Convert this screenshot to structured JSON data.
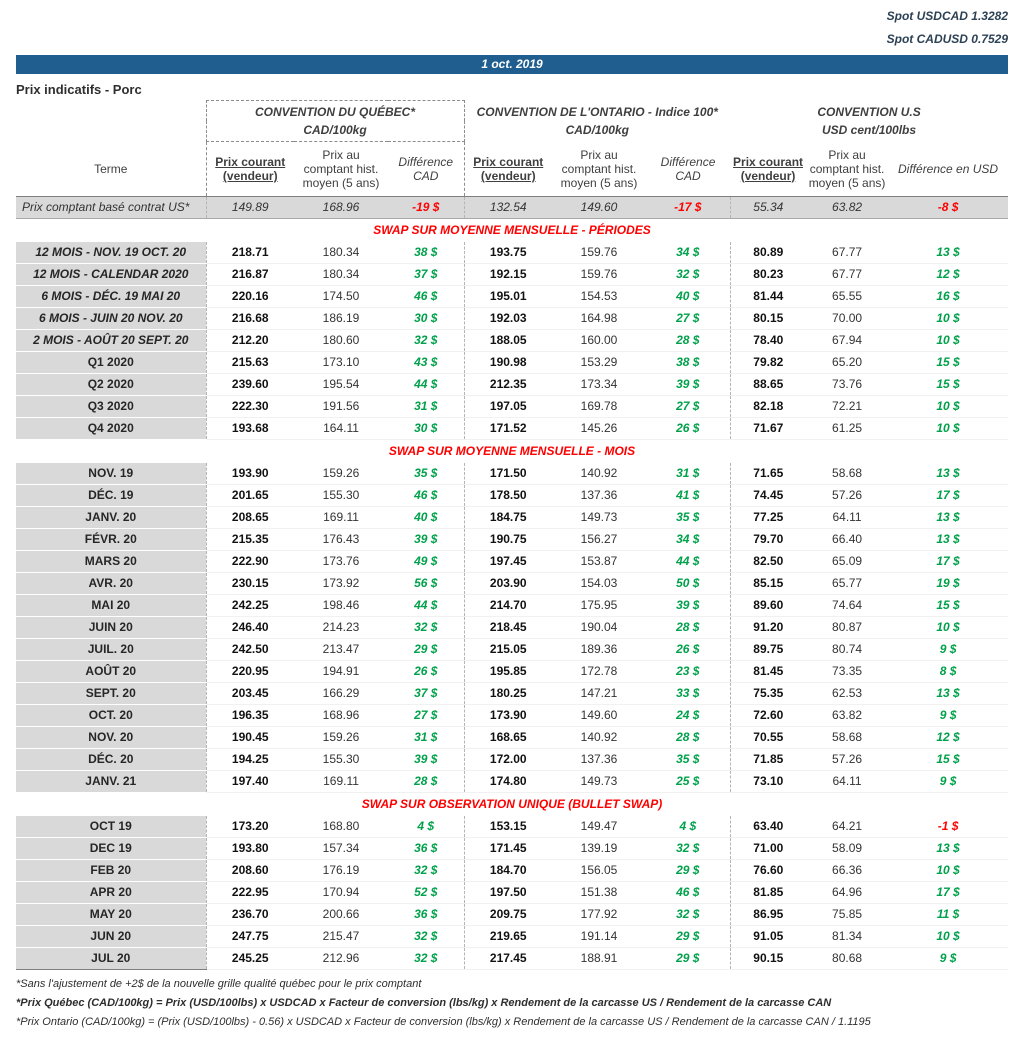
{
  "colors": {
    "banner_blue": "#205E90",
    "positive_green": "#00A14B",
    "negative_red": "#FF0000",
    "section_title_red": "#FF0000",
    "terme_gray": "#D9D9D9"
  },
  "spot_rates": {
    "usdcad": {
      "label": "Spot USDCAD",
      "value": "1.3282"
    },
    "cadusd": {
      "label": "Spot CADUSD",
      "value": "0.7529"
    }
  },
  "date_banner": "1 oct. 2019",
  "page_title": "Prix indicatifs - Porc",
  "header": {
    "terme": "Terme",
    "conventions": [
      {
        "title": "CONVENTION DU QUÉBEC*",
        "unit": "CAD/100kg"
      },
      {
        "title": "CONVENTION DE L'ONTARIO - Indice 100*",
        "unit": "CAD/100kg"
      },
      {
        "title": "CONVENTION U.S",
        "unit": "USD cent/100lbs"
      }
    ],
    "col_prix_courant": "Prix courant (vendeur)",
    "col_prix_comptant": "Prix au comptant hist. moyen (5 ans)",
    "col_diff_cad": "Différence CAD",
    "col_diff_usd": "Différence en USD"
  },
  "spot_row": {
    "label": "Prix comptant basé contrat US*",
    "values": [
      "149.89",
      "168.96",
      "-19 $",
      "132.54",
      "149.60",
      "-17 $",
      "55.34",
      "63.82",
      "-8 $"
    ]
  },
  "sections": [
    {
      "title": "SWAP SUR MOYENNE MENSUELLE - PÉRIODES",
      "rows": [
        {
          "terme": "12 MOIS -  NOV. 19 OCT. 20",
          "italic": true,
          "v": [
            "218.71",
            "180.34",
            "38 $",
            "193.75",
            "159.76",
            "34 $",
            "80.89",
            "67.77",
            "13 $"
          ]
        },
        {
          "terme": "12 MOIS - CALENDAR 2020",
          "italic": true,
          "v": [
            "216.87",
            "180.34",
            "37 $",
            "192.15",
            "159.76",
            "32 $",
            "80.23",
            "67.77",
            "12 $"
          ]
        },
        {
          "terme": "6 MOIS - DÉC. 19 MAI 20",
          "italic": true,
          "v": [
            "220.16",
            "174.50",
            "46 $",
            "195.01",
            "154.53",
            "40 $",
            "81.44",
            "65.55",
            "16 $"
          ]
        },
        {
          "terme": "6 MOIS -  JUIN 20 NOV. 20",
          "italic": true,
          "v": [
            "216.68",
            "186.19",
            "30 $",
            "192.03",
            "164.98",
            "27 $",
            "80.15",
            "70.00",
            "10 $"
          ]
        },
        {
          "terme": "2 MOIS -  AOÛT 20  SEPT. 20",
          "italic": true,
          "v": [
            "212.20",
            "180.60",
            "32 $",
            "188.05",
            "160.00",
            "28 $",
            "78.40",
            "67.94",
            "10 $"
          ]
        },
        {
          "terme": "Q1 2020",
          "v": [
            "215.63",
            "173.10",
            "43 $",
            "190.98",
            "153.29",
            "38 $",
            "79.82",
            "65.20",
            "15 $"
          ]
        },
        {
          "terme": "Q2 2020",
          "v": [
            "239.60",
            "195.54",
            "44 $",
            "212.35",
            "173.34",
            "39 $",
            "88.65",
            "73.76",
            "15 $"
          ]
        },
        {
          "terme": "Q3 2020",
          "v": [
            "222.30",
            "191.56",
            "31 $",
            "197.05",
            "169.78",
            "27 $",
            "82.18",
            "72.21",
            "10 $"
          ]
        },
        {
          "terme": "Q4 2020",
          "v": [
            "193.68",
            "164.11",
            "30 $",
            "171.52",
            "145.26",
            "26 $",
            "71.67",
            "61.25",
            "10 $"
          ]
        }
      ]
    },
    {
      "title": "SWAP SUR MOYENNE MENSUELLE - MOIS",
      "rows": [
        {
          "terme": "NOV. 19",
          "v": [
            "193.90",
            "159.26",
            "35 $",
            "171.50",
            "140.92",
            "31 $",
            "71.65",
            "58.68",
            "13 $"
          ]
        },
        {
          "terme": "DÉC. 19",
          "v": [
            "201.65",
            "155.30",
            "46 $",
            "178.50",
            "137.36",
            "41 $",
            "74.45",
            "57.26",
            "17 $"
          ]
        },
        {
          "terme": "JANV. 20",
          "v": [
            "208.65",
            "169.11",
            "40 $",
            "184.75",
            "149.73",
            "35 $",
            "77.25",
            "64.11",
            "13 $"
          ]
        },
        {
          "terme": "FÉVR. 20",
          "v": [
            "215.35",
            "176.43",
            "39 $",
            "190.75",
            "156.27",
            "34 $",
            "79.70",
            "66.40",
            "13 $"
          ]
        },
        {
          "terme": "MARS 20",
          "v": [
            "222.90",
            "173.76",
            "49 $",
            "197.45",
            "153.87",
            "44 $",
            "82.50",
            "65.09",
            "17 $"
          ]
        },
        {
          "terme": "AVR. 20",
          "v": [
            "230.15",
            "173.92",
            "56 $",
            "203.90",
            "154.03",
            "50 $",
            "85.15",
            "65.77",
            "19 $"
          ]
        },
        {
          "terme": "MAI 20",
          "v": [
            "242.25",
            "198.46",
            "44 $",
            "214.70",
            "175.95",
            "39 $",
            "89.60",
            "74.64",
            "15 $"
          ]
        },
        {
          "terme": "JUIN 20",
          "v": [
            "246.40",
            "214.23",
            "32 $",
            "218.45",
            "190.04",
            "28 $",
            "91.20",
            "80.87",
            "10 $"
          ]
        },
        {
          "terme": "JUIL. 20",
          "v": [
            "242.50",
            "213.47",
            "29 $",
            "215.05",
            "189.36",
            "26 $",
            "89.75",
            "80.74",
            "9 $"
          ]
        },
        {
          "terme": "AOÛT 20",
          "v": [
            "220.95",
            "194.91",
            "26 $",
            "195.85",
            "172.78",
            "23 $",
            "81.45",
            "73.35",
            "8 $"
          ]
        },
        {
          "terme": "SEPT. 20",
          "v": [
            "203.45",
            "166.29",
            "37 $",
            "180.25",
            "147.21",
            "33 $",
            "75.35",
            "62.53",
            "13 $"
          ]
        },
        {
          "terme": "OCT. 20",
          "v": [
            "196.35",
            "168.96",
            "27 $",
            "173.90",
            "149.60",
            "24 $",
            "72.60",
            "63.82",
            "9 $"
          ]
        },
        {
          "terme": "NOV. 20",
          "v": [
            "190.45",
            "159.26",
            "31 $",
            "168.65",
            "140.92",
            "28 $",
            "70.55",
            "58.68",
            "12 $"
          ]
        },
        {
          "terme": "DÉC. 20",
          "v": [
            "194.25",
            "155.30",
            "39 $",
            "172.00",
            "137.36",
            "35 $",
            "71.85",
            "57.26",
            "15 $"
          ]
        },
        {
          "terme": "JANV. 21",
          "v": [
            "197.40",
            "169.11",
            "28 $",
            "174.80",
            "149.73",
            "25 $",
            "73.10",
            "64.11",
            "9 $"
          ]
        }
      ]
    },
    {
      "title": "SWAP SUR OBSERVATION UNIQUE (BULLET SWAP)",
      "rows": [
        {
          "terme": "OCT 19",
          "v": [
            "173.20",
            "168.80",
            "4 $",
            "153.15",
            "149.47",
            "4 $",
            "63.40",
            "64.21",
            "-1 $"
          ]
        },
        {
          "terme": "DEC 19",
          "v": [
            "193.80",
            "157.34",
            "36 $",
            "171.45",
            "139.19",
            "32 $",
            "71.00",
            "58.09",
            "13 $"
          ]
        },
        {
          "terme": "FEB 20",
          "v": [
            "208.60",
            "176.19",
            "32 $",
            "184.70",
            "156.05",
            "29 $",
            "76.60",
            "66.36",
            "10 $"
          ]
        },
        {
          "terme": "APR 20",
          "v": [
            "222.95",
            "170.94",
            "52 $",
            "197.50",
            "151.38",
            "46 $",
            "81.85",
            "64.96",
            "17 $"
          ]
        },
        {
          "terme": "MAY 20",
          "v": [
            "236.70",
            "200.66",
            "36 $",
            "209.75",
            "177.92",
            "32 $",
            "86.95",
            "75.85",
            "11 $"
          ]
        },
        {
          "terme": "JUN 20",
          "v": [
            "247.75",
            "215.47",
            "32 $",
            "219.65",
            "191.14",
            "29 $",
            "91.05",
            "81.34",
            "10 $"
          ]
        },
        {
          "terme": "JUL 20",
          "v": [
            "245.25",
            "212.96",
            "32 $",
            "217.45",
            "188.91",
            "29 $",
            "90.15",
            "80.68",
            "9 $"
          ]
        }
      ]
    }
  ],
  "footnotes": [
    "*Sans l'ajustement de +2$ de la nouvelle grille qualité québec pour le prix comptant",
    "*Prix Québec (CAD/100kg) = Prix (USD/100lbs) x USDCAD x Facteur de conversion (lbs/kg) x Rendement de la carcasse US / Rendement de la carcasse CAN",
    "*Prix Ontario (CAD/100kg) = (Prix (USD/100lbs) - 0.56) x USDCAD x Facteur de conversion (lbs/kg) x Rendement de la carcasse US / Rendement de la carcasse CAN / 1.1195"
  ]
}
